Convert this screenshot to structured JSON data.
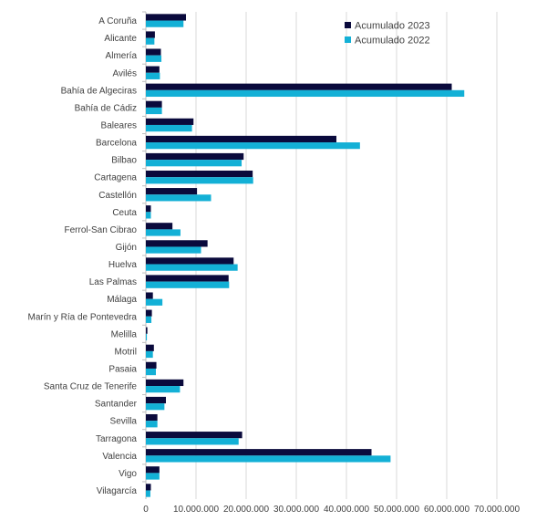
{
  "chart_data": {
    "type": "bar",
    "orientation": "horizontal",
    "categories": [
      "A Coruña",
      "Alicante",
      "Almería",
      "Avilés",
      "Bahía de Algeciras",
      "Bahía de Cádiz",
      "Baleares",
      "Barcelona",
      "Bilbao",
      "Cartagena",
      "Castellón",
      "Ceuta",
      "Ferrol-San Cibrao",
      "Gijón",
      "Huelva",
      "Las Palmas",
      "Málaga",
      "Marín y Ría de Pontevedra",
      "Melilla",
      "Motril",
      "Pasaia",
      "Santa Cruz de Tenerife",
      "Santander",
      "Sevilla",
      "Tarragona",
      "Valencia",
      "Vigo",
      "Vilagarcía"
    ],
    "series": [
      {
        "name": "Acumulado 2023",
        "color": "#0a0a3c",
        "values": [
          8000000,
          1800000,
          3000000,
          2700000,
          61000000,
          3200000,
          9500000,
          38000000,
          19500000,
          21300000,
          10200000,
          1000000,
          5300000,
          12300000,
          17500000,
          16500000,
          1400000,
          1200000,
          300000,
          1600000,
          2100000,
          7500000,
          4000000,
          2300000,
          19200000,
          45000000,
          2700000,
          1000000
        ]
      },
      {
        "name": "Acumulado 2022",
        "color": "#13b0d6",
        "values": [
          7500000,
          1700000,
          3100000,
          2800000,
          63500000,
          3200000,
          9200000,
          42700000,
          19100000,
          21400000,
          13000000,
          1000000,
          6900000,
          11000000,
          18300000,
          16600000,
          3300000,
          1100000,
          200000,
          1400000,
          2000000,
          6800000,
          3700000,
          2300000,
          18500000,
          48800000,
          2700000,
          900000
        ]
      }
    ],
    "x_ticks": [
      "0",
      "10.000.000",
      "20.000.000",
      "30.000.000",
      "40.000.000",
      "50.000.000",
      "60.000.000",
      "70.000.000"
    ],
    "xlim": [
      0,
      70000000
    ],
    "grid": true,
    "legend_position": "top-right",
    "title": "",
    "xlabel": "",
    "ylabel": ""
  }
}
